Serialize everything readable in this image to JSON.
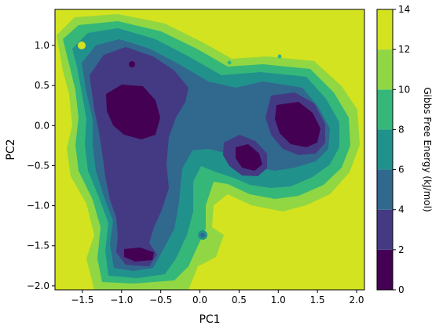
{
  "chart_data": {
    "type": "contour",
    "xlabel": "PC1",
    "ylabel": "PC2",
    "xlim": [
      -1.85,
      2.1
    ],
    "ylim": [
      -2.05,
      1.45
    ],
    "xticks": [
      -1.5,
      -1.0,
      -0.5,
      0.0,
      0.5,
      1.0,
      1.5,
      2.0
    ],
    "xtick_labels": [
      "−1.5",
      "−1.0",
      "−0.5",
      "0.0",
      "0.5",
      "1.0",
      "1.5",
      "2.0"
    ],
    "yticks": [
      1.0,
      0.5,
      0.0,
      -0.5,
      -1.0,
      -1.5,
      -2.0
    ],
    "ytick_labels": [
      "1.0",
      "0.5",
      "0.0",
      "−0.5",
      "−1.0",
      "−1.5",
      "−2.0"
    ],
    "colorbar": {
      "label": "Gibbs Free Energy (kJ/mol)",
      "ticks": [
        0,
        2,
        4,
        6,
        8,
        10,
        12,
        14
      ],
      "tick_labels": [
        "0",
        "2",
        "4",
        "6",
        "8",
        "10",
        "12",
        "14"
      ],
      "levels": [
        0,
        2,
        4,
        6,
        8,
        10,
        12,
        14
      ],
      "colors": [
        "#440154",
        "#443a83",
        "#31688e",
        "#21918c",
        "#35b779",
        "#90d743",
        "#d3e31f"
      ]
    },
    "background_value": 14,
    "minima": [
      {
        "x": -0.8,
        "y": 0.15,
        "value": 1
      },
      {
        "x": 0.65,
        "y": -0.4,
        "value": 1
      },
      {
        "x": 1.35,
        "y": 0.1,
        "value": 1
      }
    ]
  }
}
